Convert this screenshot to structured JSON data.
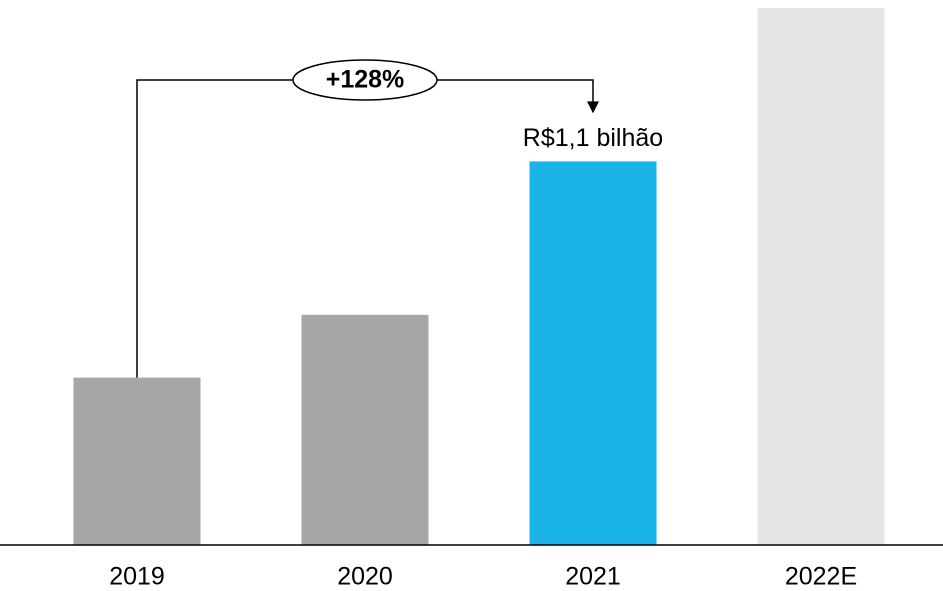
{
  "chart_data": {
    "type": "bar",
    "categories": [
      "2019",
      "2020",
      "2021",
      "2022E"
    ],
    "values": [
      0.48,
      0.66,
      1.1,
      1.54
    ],
    "colors": [
      "#a6a6a6",
      "#a6a6a6",
      "#1ab4e8",
      "#e6e6e6"
    ],
    "value_labels": [
      null,
      null,
      "R$1,1 bilhão",
      null
    ],
    "annotation": {
      "text": "+128%",
      "from": 0,
      "to": 2
    }
  }
}
